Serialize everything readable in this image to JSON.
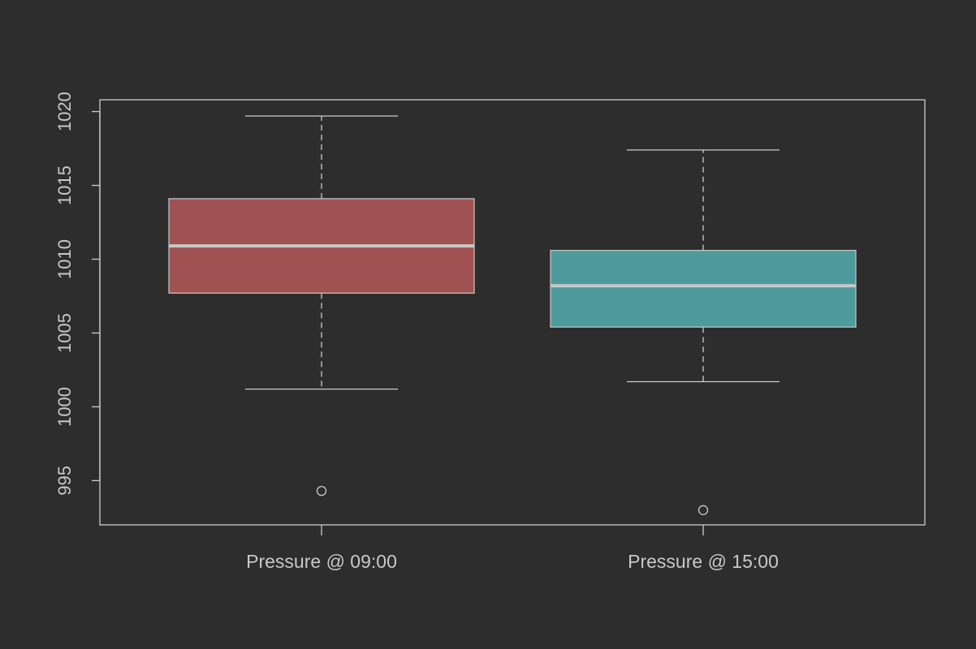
{
  "chart_data": {
    "type": "boxplot",
    "title": "",
    "xlabel": "",
    "ylabel": "",
    "ylim": [
      992,
      1020.8
    ],
    "yticks": [
      995,
      1000,
      1005,
      1010,
      1015,
      1020
    ],
    "ytick_labels": [
      "995",
      "1000",
      "1005",
      "1010",
      "1015",
      "1020"
    ],
    "categories": [
      "Pressure @ 09:00",
      "Pressure @ 15:00"
    ],
    "boxes": [
      {
        "label": "Pressure @ 09:00",
        "whisker_low": 1001.2,
        "q1": 1007.7,
        "median": 1010.9,
        "q3": 1014.1,
        "whisker_high": 1019.7,
        "outliers": [
          994.3
        ],
        "color": "#a05252"
      },
      {
        "label": "Pressure @ 15:00",
        "whisker_low": 1001.7,
        "q1": 1005.4,
        "median": 1008.2,
        "q3": 1010.6,
        "whisker_high": 1017.4,
        "outliers": [
          993.0
        ],
        "color": "#4e9b9d"
      }
    ],
    "grid": false,
    "legend": "none",
    "colors": {
      "background": "#2d2d2d",
      "axis": "#cccccc",
      "median": "#c8c8c8",
      "text": "#c8c8c8"
    }
  }
}
